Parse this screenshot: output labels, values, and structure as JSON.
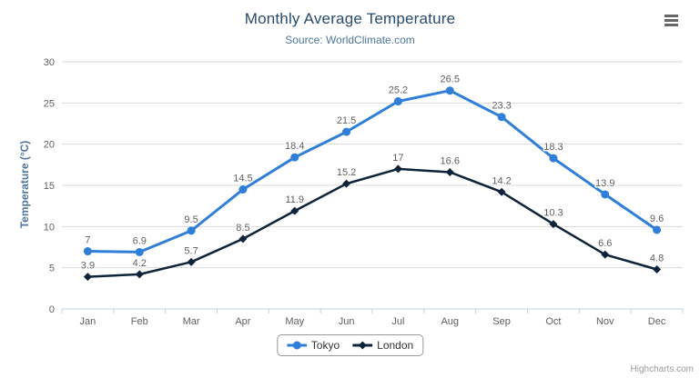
{
  "header": {
    "title": "Monthly Average Temperature",
    "subtitle": "Source: WorldClimate.com"
  },
  "chart_data": {
    "type": "line",
    "categories": [
      "Jan",
      "Feb",
      "Mar",
      "Apr",
      "May",
      "Jun",
      "Jul",
      "Aug",
      "Sep",
      "Oct",
      "Nov",
      "Dec"
    ],
    "series": [
      {
        "name": "Tokyo",
        "marker": "circle",
        "color": "#2f7ed8",
        "values": [
          7,
          6.9,
          9.5,
          14.5,
          18.4,
          21.5,
          25.2,
          26.5,
          23.3,
          18.3,
          13.9,
          9.6
        ]
      },
      {
        "name": "London",
        "marker": "diamond",
        "color": "#0d233a",
        "values": [
          3.9,
          4.2,
          5.7,
          8.5,
          11.9,
          15.2,
          17,
          16.6,
          14.2,
          10.3,
          6.6,
          4.8
        ]
      }
    ],
    "title": "Monthly Average Temperature",
    "subtitle": "Source: WorldClimate.com",
    "xlabel": "",
    "ylabel": "Temperature (°C)",
    "ylim": [
      0,
      30
    ],
    "y_tick_interval": 5,
    "grid": true,
    "legend_position": "bottom-center",
    "data_labels": true
  },
  "theme": {
    "title_color": "#274b6d",
    "subtitle_color": "#4d759e",
    "axis_title_color": "#4d759e",
    "axis_label_color": "#606060",
    "data_label_color": "#606060",
    "grid_color": "#d8d8d8",
    "axis_line_color": "#c0d0e0",
    "legend_border_color": "#999999",
    "legend_text_color": "#333333",
    "credits_color": "#999999",
    "menu_icon_color": "#666666"
  },
  "icons": {
    "menu": "hamburger-icon"
  },
  "credits": {
    "label": "Highcharts.com"
  }
}
